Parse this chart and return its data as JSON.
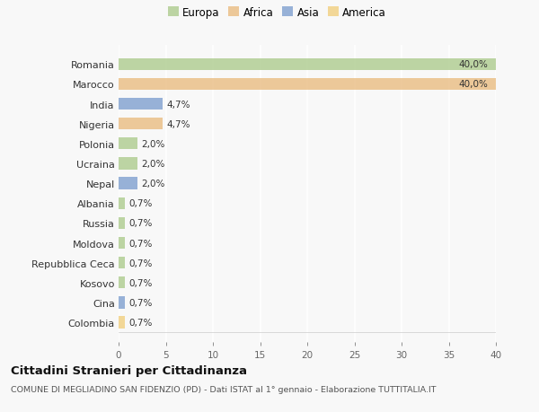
{
  "countries": [
    "Romania",
    "Marocco",
    "India",
    "Nigeria",
    "Polonia",
    "Ucraina",
    "Nepal",
    "Albania",
    "Russia",
    "Moldova",
    "Repubblica Ceca",
    "Kosovo",
    "Cina",
    "Colombia"
  ],
  "values": [
    40.0,
    40.0,
    4.7,
    4.7,
    2.0,
    2.0,
    2.0,
    0.7,
    0.7,
    0.7,
    0.7,
    0.7,
    0.7,
    0.7
  ],
  "labels": [
    "40,0%",
    "40,0%",
    "4,7%",
    "4,7%",
    "2,0%",
    "2,0%",
    "2,0%",
    "0,7%",
    "0,7%",
    "0,7%",
    "0,7%",
    "0,7%",
    "0,7%",
    "0,7%"
  ],
  "continents": [
    "Europa",
    "Africa",
    "Asia",
    "Africa",
    "Europa",
    "Europa",
    "Asia",
    "Europa",
    "Europa",
    "Europa",
    "Europa",
    "Europa",
    "Asia",
    "America"
  ],
  "colors": {
    "Europa": "#a8c887",
    "Africa": "#e8b87a",
    "Asia": "#7799cc",
    "America": "#f0cc77"
  },
  "legend_order": [
    "Europa",
    "Africa",
    "Asia",
    "America"
  ],
  "title": "Cittadini Stranieri per Cittadinanza",
  "subtitle": "COMUNE DI MEGLIADINO SAN FIDENZIO (PD) - Dati ISTAT al 1° gennaio - Elaborazione TUTTITALIA.IT",
  "xlim": [
    0,
    40
  ],
  "xticks": [
    0,
    5,
    10,
    15,
    20,
    25,
    30,
    35,
    40
  ],
  "background_color": "#f8f8f8",
  "grid_color": "#ffffff",
  "bar_alpha": 0.75
}
